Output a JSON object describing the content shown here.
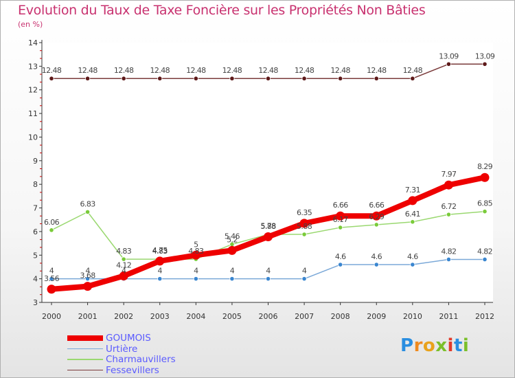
{
  "title": "Evolution du Taux de Taxe Foncière sur les Propriétés Non Bâties",
  "subtitle": "(en %)",
  "brand": {
    "letters": [
      "P",
      "r",
      "o",
      "x",
      "i",
      "t",
      "i"
    ],
    "colors": [
      "#2a8ee0",
      "#f08a1e",
      "#e9a21b",
      "#7abf2a",
      "#e23a2a",
      "#2a8ee0",
      "#7abf2a"
    ]
  },
  "chart_data": {
    "type": "line",
    "title": "Evolution du Taux de Taxe Foncière sur les Propriétés Non Bâties",
    "ylabel": "(en %)",
    "xlabel": "",
    "x": [
      "2000",
      "2001",
      "2002",
      "2003",
      "2004",
      "2005",
      "2006",
      "2007",
      "2008",
      "2009",
      "2010",
      "2011",
      "2012"
    ],
    "ylim": [
      3,
      14
    ],
    "yticks": [
      "3",
      "4",
      "5",
      "6",
      "7",
      "8",
      "9",
      "10",
      "11",
      "12",
      "13",
      "14"
    ],
    "series": [
      {
        "name": "Fessevillers",
        "color": "#7a3a3a",
        "width": 1.5,
        "marker": "#5e1a1a",
        "values": [
          12.48,
          12.48,
          12.48,
          12.48,
          12.48,
          12.48,
          12.48,
          12.48,
          12.48,
          12.48,
          12.48,
          13.09,
          13.09
        ],
        "labels": [
          "12.48",
          "12.48",
          "12.48",
          "12.48",
          "12.48",
          "12.48",
          "12.48",
          "12.48",
          "12.48",
          "12.48",
          "12.48",
          "13.09",
          "13.09"
        ]
      },
      {
        "name": "Urtière",
        "color": "#7aa8d8",
        "width": 1.5,
        "marker": "#3a86d0",
        "values": [
          4,
          4,
          4,
          4,
          4,
          4,
          4,
          4,
          4.6,
          4.6,
          4.6,
          4.82,
          4.82
        ],
        "labels": [
          "4",
          "4",
          "4",
          "4",
          "4",
          "4",
          "4",
          "4",
          "4.6",
          "4.6",
          "4.6",
          "4.82",
          "4.82"
        ]
      },
      {
        "name": "Charmauvillers",
        "color": "#9ad870",
        "width": 1.5,
        "marker": "#7acb3a",
        "values": [
          6.06,
          6.83,
          4.83,
          4.83,
          4.83,
          5.46,
          5.88,
          5.88,
          6.17,
          6.29,
          6.41,
          6.72,
          6.85
        ],
        "labels": [
          "6.06",
          "6.83",
          "4.83",
          "4.83",
          "4.83",
          "5.46",
          "5.88",
          "5.88",
          "6.17",
          "6.29",
          "6.41",
          "6.72",
          "6.85"
        ]
      },
      {
        "name": "GOUMOIS",
        "color": "#ee0000",
        "width": 8,
        "marker": "#ee0000",
        "values": [
          3.56,
          3.68,
          4.12,
          4.75,
          5,
          5.2,
          5.78,
          6.35,
          6.66,
          6.66,
          7.31,
          7.97,
          8.29
        ],
        "labels": [
          "3.56",
          "3.68",
          "4.12",
          "4.75",
          "5",
          "5.2",
          "5.78",
          "6.35",
          "6.66",
          "6.66",
          "7.31",
          "7.97",
          "8.29"
        ]
      }
    ],
    "legend": [
      {
        "name": "GOUMOIS",
        "color": "#ee0000",
        "width": 8
      },
      {
        "name": "Urtière",
        "color": "#7aa8d8",
        "width": 1.5
      },
      {
        "name": "Charmauvillers",
        "color": "#9ad870",
        "width": 1.5
      },
      {
        "name": "Fessevillers",
        "color": "#7a3a3a",
        "width": 1.5
      }
    ]
  }
}
